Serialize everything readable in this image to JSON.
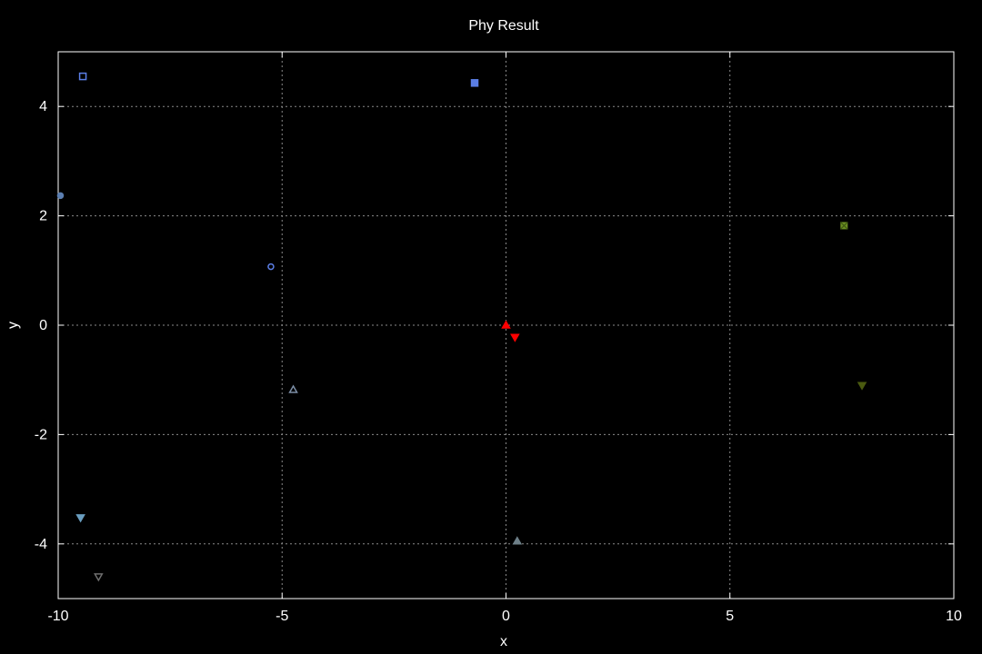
{
  "chart_data": {
    "type": "scatter",
    "title": "Phy Result",
    "xlabel": "x",
    "ylabel": "y",
    "xlim": [
      -10,
      10
    ],
    "ylim": [
      -5,
      5
    ],
    "grid": true,
    "xticks": [
      -10,
      -5,
      0,
      5,
      10
    ],
    "yticks": [
      -4,
      -2,
      0,
      2,
      4
    ],
    "x_tick_labels": [
      "-10",
      "-5",
      "0",
      "5",
      "10"
    ],
    "y_tick_labels": [
      "-4",
      "-2",
      "0",
      "2",
      "4"
    ],
    "points": [
      {
        "x": -9.45,
        "y": 4.55,
        "marker": "square-open",
        "color": "#5b7ee5"
      },
      {
        "x": -0.7,
        "y": 4.43,
        "marker": "square-filled",
        "color": "#5b7ee5"
      },
      {
        "x": -9.95,
        "y": 2.37,
        "marker": "circle-filled",
        "color": "#5b7eb0"
      },
      {
        "x": -5.25,
        "y": 1.07,
        "marker": "circle-open",
        "color": "#5b7ee5"
      },
      {
        "x": -4.75,
        "y": -1.18,
        "marker": "triangle-up-open",
        "color": "#7c8ea6"
      },
      {
        "x": -9.5,
        "y": -3.52,
        "marker": "triangle-down-filled",
        "color": "#6a9ec0"
      },
      {
        "x": -9.1,
        "y": -4.6,
        "marker": "triangle-down-open",
        "color": "#6e6e6e"
      },
      {
        "x": 0.25,
        "y": -3.95,
        "marker": "triangle-up-filled",
        "color": "#6d7f88"
      },
      {
        "x": 0.0,
        "y": 0.0,
        "marker": "triangle-up-filled",
        "color": "#ff0000"
      },
      {
        "x": 0.2,
        "y": -0.22,
        "marker": "triangle-down-filled",
        "color": "#ff0000"
      },
      {
        "x": 7.55,
        "y": 1.82,
        "marker": "x-filled-box",
        "color": "#6b8e23"
      },
      {
        "x": 7.95,
        "y": -1.1,
        "marker": "triangle-down-filled",
        "color": "#4a5a10"
      }
    ]
  }
}
